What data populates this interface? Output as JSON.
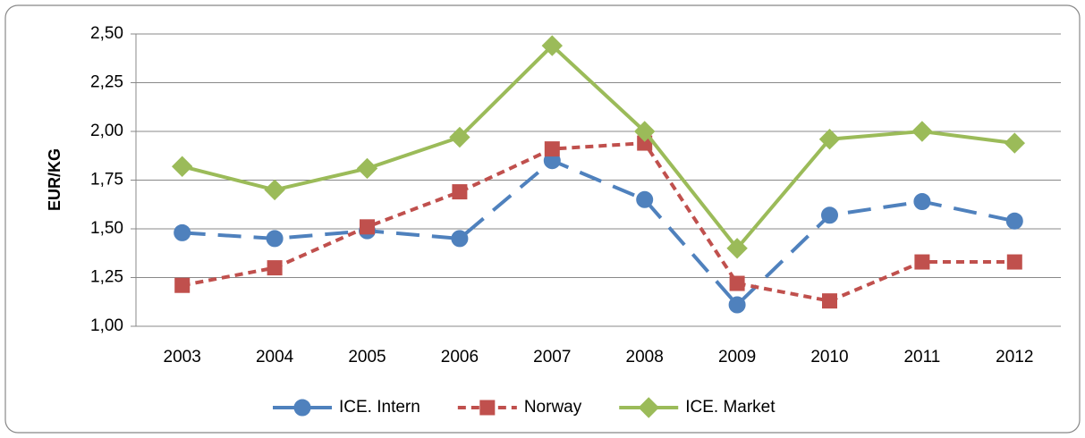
{
  "chart_data": {
    "type": "line",
    "ylabel": "EUR/KG",
    "categories": [
      "2003",
      "2004",
      "2005",
      "2006",
      "2007",
      "2008",
      "2009",
      "2010",
      "2011",
      "2012"
    ],
    "series": [
      {
        "name": "ICE. Intern",
        "color": "#4f81bd",
        "marker": "circle",
        "dash": "long",
        "values": [
          1.48,
          1.45,
          1.49,
          1.45,
          1.85,
          1.65,
          1.11,
          1.57,
          1.64,
          1.54
        ]
      },
      {
        "name": "Norway",
        "color": "#c0504d",
        "marker": "square",
        "dash": "short",
        "values": [
          1.21,
          1.3,
          1.51,
          1.69,
          1.91,
          1.94,
          1.22,
          1.13,
          1.33,
          1.33
        ]
      },
      {
        "name": "ICE. Market",
        "color": "#9bbb59",
        "marker": "diamond",
        "dash": "solid",
        "values": [
          1.82,
          1.7,
          1.81,
          1.97,
          2.44,
          2.0,
          1.4,
          1.96,
          2.0,
          1.94
        ]
      }
    ],
    "ylim": [
      1.0,
      2.5
    ],
    "yticks": [
      {
        "value": 1.0,
        "label": "1,00"
      },
      {
        "value": 1.25,
        "label": "1,25"
      },
      {
        "value": 1.5,
        "label": "1,50"
      },
      {
        "value": 1.75,
        "label": "1,75"
      },
      {
        "value": 2.0,
        "label": "2,00"
      },
      {
        "value": 2.25,
        "label": "2,25"
      },
      {
        "value": 2.5,
        "label": "2,50"
      }
    ],
    "grid": true,
    "legend": "bottom"
  }
}
